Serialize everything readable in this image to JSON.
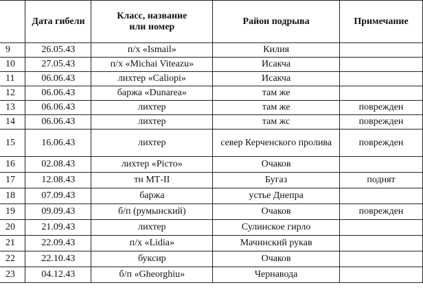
{
  "table": {
    "headers": [
      "",
      "Дата гибели",
      "Класс, название или номер",
      "Район подрыва",
      "Примечание"
    ],
    "rows": [
      {
        "n": "9",
        "date": "26.05.43",
        "name": "п/х «Ismail»",
        "area": "Килия",
        "note": ""
      },
      {
        "n": "10",
        "date": "27.05.43",
        "name": "п/х «Michai Viteazu»",
        "area": "Исакча",
        "note": ""
      },
      {
        "n": "11",
        "date": "06.06.43",
        "name": "лихтер «Caliopi»",
        "area": "Исакча",
        "note": ""
      },
      {
        "n": "12",
        "date": "06.06.43",
        "name": "баржа «Dunarea»",
        "area": "там же",
        "note": ""
      },
      {
        "n": "13",
        "date": "06.06.43",
        "name": "лихтер",
        "area": "там же",
        "note": "поврежден"
      },
      {
        "n": "14",
        "date": "06.06.43",
        "name": "лихтер",
        "area": "там жс",
        "note": "поврежден"
      },
      {
        "n": "15",
        "date": "16.06.43",
        "name": "лихтер",
        "area": "север Керченского пролива",
        "note": "поврежден"
      },
      {
        "n": "16",
        "date": "02.08.43",
        "name": "лихтер «Picтo»",
        "area": "Очаков",
        "note": ""
      },
      {
        "n": "17",
        "date": "12.08.43",
        "name": "тн МТ-II",
        "area": "Бугаз",
        "note": "поднят"
      },
      {
        "n": "18",
        "date": "07.09.43",
        "name": "баржа",
        "area": "устье Днепра",
        "note": ""
      },
      {
        "n": "19",
        "date": "09.09.43",
        "name": "б/п (румынский)",
        "area": "Очаков",
        "note": "поврежден"
      },
      {
        "n": "20",
        "date": "21.09.43",
        "name": "лихтер",
        "area": "Сулинское гирло",
        "note": ""
      },
      {
        "n": "21",
        "date": "22.09.43",
        "name": "п/х «Lidia»",
        "area": "Мачинский рукав",
        "note": ""
      },
      {
        "n": "22",
        "date": "22.10.43",
        "name": "буксир",
        "area": "Очаков",
        "note": ""
      },
      {
        "n": "23",
        "date": "04.12.43",
        "name": "б/п «Gheorghiu»",
        "area": "Чернавода",
        "note": ""
      }
    ]
  }
}
